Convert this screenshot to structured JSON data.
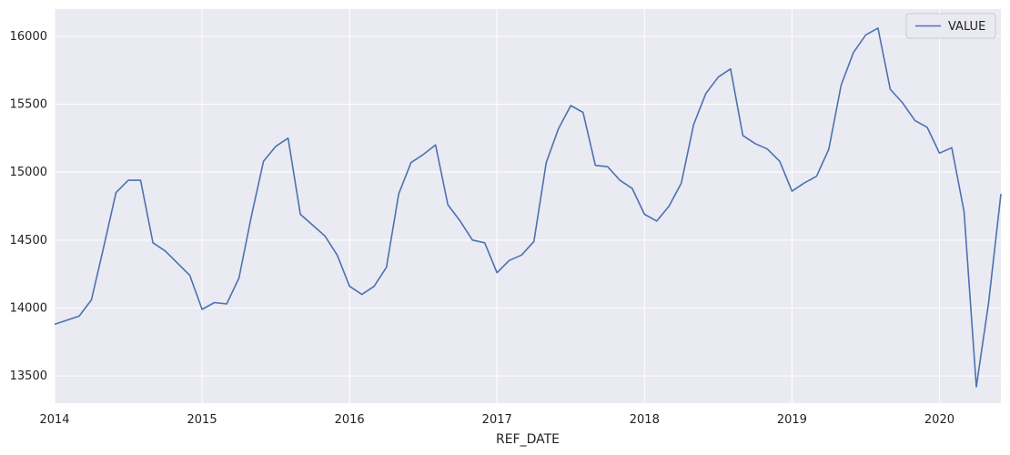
{
  "chart_data": {
    "type": "line",
    "xlabel": "REF_DATE",
    "ylabel": "",
    "xlim": [
      "2014-01",
      "2020-06"
    ],
    "ylim": [
      13300,
      16200
    ],
    "xticks": [
      "2014",
      "2015",
      "2016",
      "2017",
      "2018",
      "2019",
      "2020"
    ],
    "yticks": [
      13500,
      14000,
      14500,
      15000,
      15500,
      16000
    ],
    "grid": true,
    "legend": "top-right",
    "colors": {
      "line": "#4c72b0",
      "background": "#eaeaf2",
      "grid": "#ffffff"
    },
    "series": [
      {
        "name": "VALUE",
        "x": [
          "2014-01",
          "2014-02",
          "2014-03",
          "2014-04",
          "2014-05",
          "2014-06",
          "2014-07",
          "2014-08",
          "2014-09",
          "2014-10",
          "2014-11",
          "2014-12",
          "2015-01",
          "2015-02",
          "2015-03",
          "2015-04",
          "2015-05",
          "2015-06",
          "2015-07",
          "2015-08",
          "2015-09",
          "2015-10",
          "2015-11",
          "2015-12",
          "2016-01",
          "2016-02",
          "2016-03",
          "2016-04",
          "2016-05",
          "2016-06",
          "2016-07",
          "2016-08",
          "2016-09",
          "2016-10",
          "2016-11",
          "2016-12",
          "2017-01",
          "2017-02",
          "2017-03",
          "2017-04",
          "2017-05",
          "2017-06",
          "2017-07",
          "2017-08",
          "2017-09",
          "2017-10",
          "2017-11",
          "2017-12",
          "2018-01",
          "2018-02",
          "2018-03",
          "2018-04",
          "2018-05",
          "2018-06",
          "2018-07",
          "2018-08",
          "2018-09",
          "2018-10",
          "2018-11",
          "2018-12",
          "2019-01",
          "2019-02",
          "2019-03",
          "2019-04",
          "2019-05",
          "2019-06",
          "2019-07",
          "2019-08",
          "2019-09",
          "2019-10",
          "2019-11",
          "2019-12",
          "2020-01",
          "2020-02",
          "2020-03",
          "2020-04",
          "2020-05",
          "2020-06"
        ],
        "values": [
          13880,
          13910,
          13940,
          14060,
          14450,
          14850,
          14940,
          14940,
          14480,
          14420,
          14330,
          14240,
          13990,
          14040,
          14030,
          14220,
          14670,
          15080,
          15190,
          15250,
          14690,
          14610,
          14530,
          14390,
          14160,
          14100,
          14160,
          14300,
          14840,
          15070,
          15130,
          15200,
          14760,
          14640,
          14500,
          14480,
          14260,
          14350,
          14390,
          14490,
          15070,
          15320,
          15490,
          15440,
          15050,
          15040,
          14940,
          14880,
          14690,
          14640,
          14750,
          14920,
          15350,
          15580,
          15700,
          15760,
          15270,
          15210,
          15170,
          15080,
          14860,
          14920,
          14970,
          15170,
          15640,
          15880,
          16010,
          16060,
          15610,
          15510,
          15380,
          15330,
          15140,
          15180,
          14710,
          13420,
          14040,
          14840
        ]
      }
    ]
  }
}
